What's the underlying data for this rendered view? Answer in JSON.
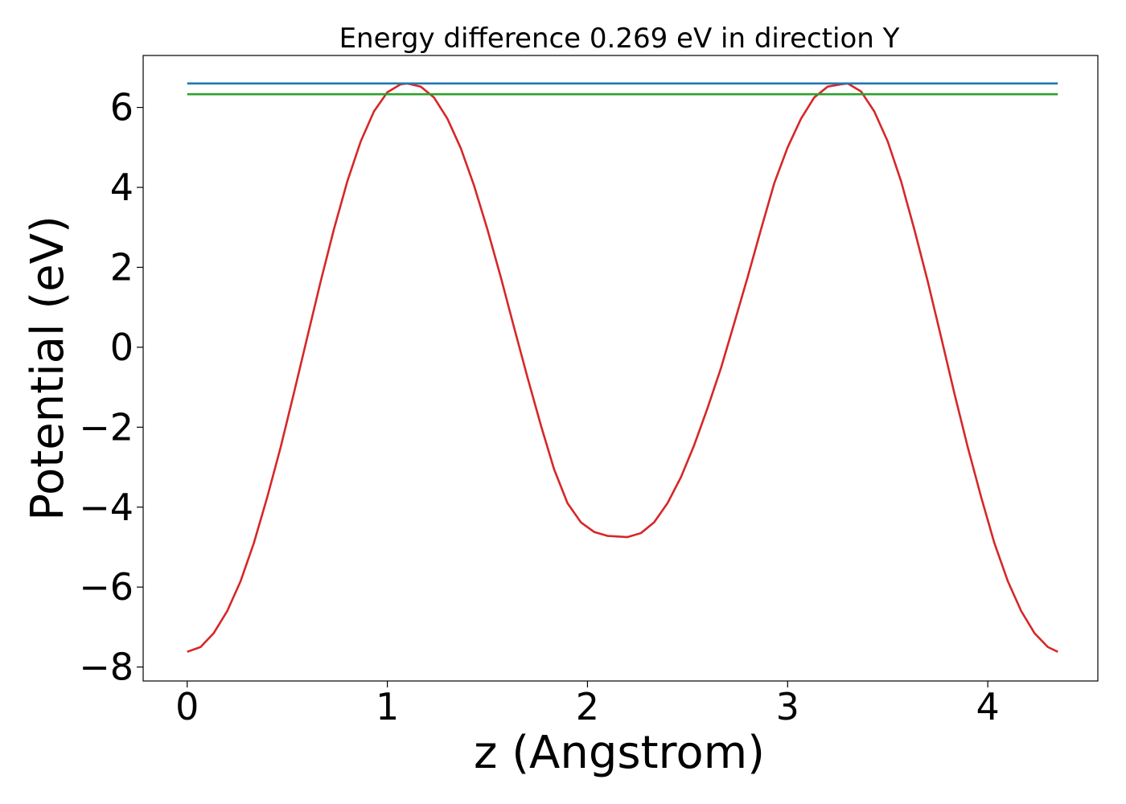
{
  "chart_data": {
    "type": "line",
    "title": "Energy difference 0.269 eV in direction Y",
    "xlabel": "z (Angstrom)",
    "ylabel": "Potential (eV)",
    "xlim": [
      -0.22,
      4.55
    ],
    "ylim": [
      -8.35,
      7.3
    ],
    "xticks": [
      0,
      1,
      2,
      3,
      4
    ],
    "xtick_labels": [
      "0",
      "1",
      "2",
      "3",
      "4"
    ],
    "yticks": [
      -8,
      -6,
      -4,
      -2,
      0,
      2,
      4,
      6
    ],
    "ytick_labels": [
      "−8",
      "−6",
      "−4",
      "−2",
      "0",
      "2",
      "4",
      "6"
    ],
    "grid": false,
    "legend": "none",
    "series": [
      {
        "color": "#d62728",
        "x": [
          0,
          0.067,
          0.133,
          0.2,
          0.267,
          0.333,
          0.4,
          0.467,
          0.533,
          0.6,
          0.667,
          0.733,
          0.8,
          0.867,
          0.933,
          1.0,
          1.067,
          1.1,
          1.167,
          1.233,
          1.3,
          1.367,
          1.433,
          1.5,
          1.567,
          1.633,
          1.7,
          1.767,
          1.833,
          1.9,
          1.967,
          2.033,
          2.1,
          2.2,
          2.267,
          2.333,
          2.4,
          2.467,
          2.533,
          2.6,
          2.667,
          2.733,
          2.8,
          2.867,
          2.933,
          3.0,
          3.067,
          3.133,
          3.2,
          3.267,
          3.3,
          3.367,
          3.433,
          3.5,
          3.567,
          3.633,
          3.7,
          3.767,
          3.833,
          3.9,
          3.967,
          4.033,
          4.1,
          4.167,
          4.233,
          4.3,
          4.35
        ],
        "y": [
          -7.62,
          -7.5,
          -7.15,
          -6.6,
          -5.85,
          -4.9,
          -3.75,
          -2.5,
          -1.15,
          0.25,
          1.65,
          2.95,
          4.15,
          5.15,
          5.9,
          6.38,
          6.58,
          6.6,
          6.52,
          6.25,
          5.72,
          4.98,
          4.05,
          2.95,
          1.75,
          0.5,
          -0.75,
          -1.95,
          -3.05,
          -3.9,
          -4.38,
          -4.62,
          -4.72,
          -4.75,
          -4.65,
          -4.38,
          -3.9,
          -3.25,
          -2.45,
          -1.52,
          -0.52,
          0.6,
          1.75,
          2.95,
          4.1,
          5.0,
          5.72,
          6.25,
          6.52,
          6.58,
          6.6,
          6.4,
          5.9,
          5.15,
          4.15,
          2.95,
          1.65,
          0.25,
          -1.15,
          -2.5,
          -3.75,
          -4.9,
          -5.85,
          -6.6,
          -7.15,
          -7.5,
          -7.62
        ]
      },
      {
        "color": "#1f77b4",
        "x": [
          0,
          4.35
        ],
        "y": [
          6.6,
          6.6
        ]
      },
      {
        "color": "#2ca02c",
        "x": [
          0,
          4.35
        ],
        "y": [
          6.331,
          6.331
        ]
      }
    ]
  }
}
